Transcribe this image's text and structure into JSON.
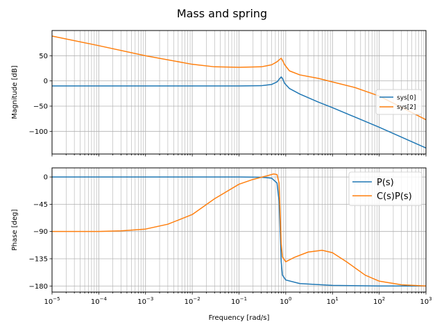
{
  "chart_data": [
    {
      "type": "line",
      "title": "Mass and spring",
      "xlabel": "",
      "ylabel": "Magnitude [dB]",
      "xscale": "log",
      "xlim": [
        1e-05,
        1000
      ],
      "ylim": [
        -145,
        100
      ],
      "grid": true,
      "legend": "center-right",
      "yticks": [
        50,
        0,
        -50,
        -100
      ],
      "ytick_labels": [
        "50",
        "0",
        "−50",
        "−100"
      ],
      "series": [
        {
          "name": "sys[0]",
          "color": "#1f77b4",
          "points": [
            [
              1e-05,
              -10
            ],
            [
              0.001,
              -10
            ],
            [
              0.1,
              -10
            ],
            [
              0.3,
              -9.5
            ],
            [
              0.5,
              -7
            ],
            [
              0.65,
              -2
            ],
            [
              0.75,
              5
            ],
            [
              0.8,
              8
            ],
            [
              0.85,
              5
            ],
            [
              0.95,
              -5
            ],
            [
              1.2,
              -15
            ],
            [
              2,
              -26
            ],
            [
              5,
              -42
            ],
            [
              10,
              -53
            ],
            [
              100,
              -92
            ],
            [
              1000,
              -133
            ]
          ]
        },
        {
          "name": "sys[2]",
          "color": "#ff7f0e",
          "points": [
            [
              1e-05,
              89
            ],
            [
              0.0001,
              70
            ],
            [
              0.001,
              50
            ],
            [
              0.01,
              33
            ],
            [
              0.03,
              28
            ],
            [
              0.1,
              27
            ],
            [
              0.3,
              28
            ],
            [
              0.5,
              32
            ],
            [
              0.65,
              38
            ],
            [
              0.75,
              43
            ],
            [
              0.8,
              45
            ],
            [
              0.85,
              41
            ],
            [
              0.95,
              32
            ],
            [
              1.2,
              20
            ],
            [
              2,
              12
            ],
            [
              5,
              5
            ],
            [
              10,
              -2
            ],
            [
              30,
              -13
            ],
            [
              100,
              -30
            ],
            [
              1000,
              -77
            ]
          ]
        }
      ]
    },
    {
      "type": "line",
      "xlabel": "Frequency [rad/s]",
      "ylabel": "Phase [deg]",
      "xscale": "log",
      "xlim": [
        1e-05,
        1000
      ],
      "ylim": [
        -190,
        15
      ],
      "grid": true,
      "legend": "top-right",
      "xticks": [
        1e-05,
        0.0001,
        0.001,
        0.01,
        0.1,
        1,
        10,
        100,
        1000
      ],
      "xtick_labels": [
        [
          "10",
          "−5"
        ],
        [
          "10",
          "−4"
        ],
        [
          "10",
          "−3"
        ],
        [
          "10",
          "−2"
        ],
        [
          "10",
          "−1"
        ],
        [
          "10",
          "0"
        ],
        [
          "10",
          "1"
        ],
        [
          "10",
          "2"
        ],
        [
          "10",
          "3"
        ]
      ],
      "yticks": [
        0,
        -45,
        -90,
        -135,
        -180
      ],
      "ytick_labels": [
        "0",
        "−45",
        "−90",
        "−135",
        "−180"
      ],
      "series": [
        {
          "name": "P(s)",
          "color": "#1f77b4",
          "points": [
            [
              1e-05,
              0
            ],
            [
              0.1,
              0
            ],
            [
              0.3,
              -0.5
            ],
            [
              0.5,
              -2
            ],
            [
              0.65,
              -10
            ],
            [
              0.72,
              -40
            ],
            [
              0.77,
              -100
            ],
            [
              0.8,
              -140
            ],
            [
              0.85,
              -162
            ],
            [
              1,
              -170
            ],
            [
              2,
              -176
            ],
            [
              10,
              -179
            ],
            [
              100,
              -180
            ],
            [
              1000,
              -180
            ]
          ]
        },
        {
          "name": "C(s)P(s)",
          "color": "#ff7f0e",
          "points": [
            [
              1e-05,
              -90
            ],
            [
              0.0001,
              -90
            ],
            [
              0.0003,
              -89
            ],
            [
              0.001,
              -86
            ],
            [
              0.003,
              -78
            ],
            [
              0.01,
              -62
            ],
            [
              0.03,
              -36
            ],
            [
              0.1,
              -12
            ],
            [
              0.2,
              -4
            ],
            [
              0.4,
              2
            ],
            [
              0.55,
              5
            ],
            [
              0.65,
              4
            ],
            [
              0.72,
              -10
            ],
            [
              0.76,
              -60
            ],
            [
              0.8,
              -110
            ],
            [
              0.85,
              -132
            ],
            [
              1,
              -140
            ],
            [
              1.5,
              -133
            ],
            [
              3,
              -124
            ],
            [
              6,
              -121
            ],
            [
              10,
              -125
            ],
            [
              20,
              -140
            ],
            [
              50,
              -162
            ],
            [
              100,
              -172
            ],
            [
              300,
              -178
            ],
            [
              1000,
              -180
            ]
          ]
        }
      ]
    }
  ]
}
